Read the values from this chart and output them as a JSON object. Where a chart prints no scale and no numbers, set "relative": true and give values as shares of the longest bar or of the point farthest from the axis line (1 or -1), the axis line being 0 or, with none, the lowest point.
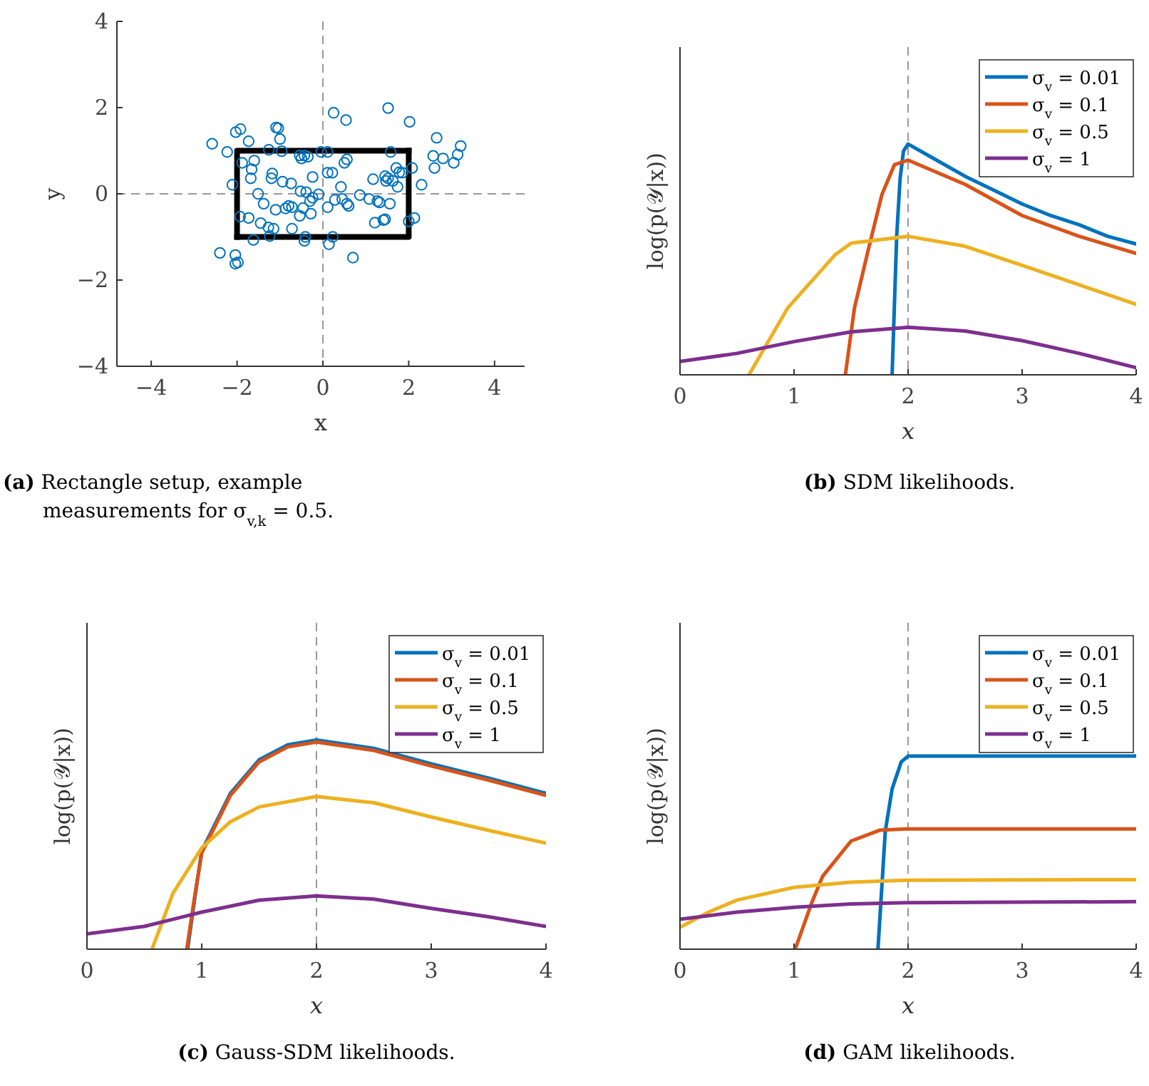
{
  "chart_data": [
    {
      "type": "scatter",
      "title": "(a) Rectangle setup, example measurements for σ$_{v,k}$ = 0.5.",
      "xlabel": "x",
      "ylabel": "y",
      "xlim": [
        -4.8,
        4.7
      ],
      "ylim": [
        -4,
        4
      ],
      "xticks": [
        -4,
        -2,
        0,
        2,
        4
      ],
      "yticks": [
        -4,
        -2,
        0,
        2,
        4
      ],
      "grid": false,
      "legend": false,
      "marker": "circle",
      "ref_lines": [
        {
          "axis": "x",
          "value": 0,
          "color": "#999999",
          "line_style": "dashed"
        },
        {
          "axis": "y",
          "value": 0,
          "color": "#999999",
          "line_style": "dashed"
        }
      ],
      "series": [
        {
          "type": "line",
          "color": "#000000",
          "marker": "none",
          "x": [
            -2,
            2,
            2
          ],
          "values": [
            -1,
            -1,
            1
          ]
        },
        {
          "type": "line",
          "color": "#000000",
          "marker": "none",
          "x": [
            2,
            -2,
            -2
          ],
          "values": [
            1,
            1,
            -1
          ]
        },
        {
          "type": "scatter",
          "color": "#0072bd",
          "x": [
            -2.58,
            -2.23,
            -2.03,
            -1.92,
            -1.73,
            -1.88,
            -1.6,
            -1.66,
            -1.68,
            -2.11,
            -1.26,
            -1.09,
            -1.04,
            -1.0,
            -0.96,
            -1.18,
            -1.2,
            -0.94,
            -0.74,
            -0.54,
            -0.43,
            -0.35,
            -0.5,
            -0.24,
            -0.04,
            0.11,
            0.25,
            0.54,
            0.56,
            0.5,
            0.11,
            0.22,
            0.42,
            1.52,
            2.02,
            1.58,
            1.71,
            1.78,
            1.45,
            1.52,
            1.47,
            1.63,
            1.17,
            2.08,
            1.85,
            1.74,
            2.3,
            2.65,
            2.57,
            2.8,
            2.6,
            3.21,
            3.14,
            3.05,
            -1.51,
            -1.38,
            -1.93,
            -1.73,
            -1.45,
            -1.27,
            -1.15,
            -1.24,
            -1.62,
            -1.1,
            -0.87,
            -0.8,
            -0.72,
            -0.72,
            -0.54,
            -0.52,
            -0.39,
            -0.46,
            -0.3,
            -0.24,
            -0.1,
            -0.28,
            -0.41,
            -0.43,
            0.11,
            0.28,
            0.45,
            0.56,
            0.6,
            0.23,
            0.14,
            0.7,
            0.86,
            1.08,
            1.27,
            1.32,
            1.56,
            1.21,
            1.41,
            1.45,
            2.0,
            2.13,
            -2.4,
            -2.04,
            -2.04,
            -1.98
          ],
          "values": [
            1.16,
            0.97,
            1.43,
            1.5,
            1.22,
            0.72,
            0.77,
            0.57,
            0.36,
            0.21,
            1.02,
            1.54,
            1.52,
            1.27,
            0.99,
            0.47,
            0.36,
            0.28,
            0.24,
            0.89,
            0.89,
            0.86,
            0.82,
            0.39,
            0.97,
            0.97,
            1.88,
            1.71,
            0.8,
            0.72,
            0.49,
            0.49,
            0.16,
            1.99,
            1.67,
            0.97,
            0.6,
            0.5,
            0.41,
            0.36,
            0.3,
            0.3,
            0.34,
            0.6,
            0.49,
            0.16,
            0.21,
            1.3,
            0.88,
            0.82,
            0.6,
            1.11,
            0.91,
            0.72,
            0.0,
            -0.23,
            -0.53,
            -0.56,
            -0.68,
            -0.78,
            -0.81,
            -0.98,
            -1.07,
            -0.37,
            -0.34,
            -0.28,
            -0.31,
            -0.81,
            -0.51,
            0.06,
            0.04,
            -0.33,
            -0.17,
            -0.09,
            -0.01,
            -0.46,
            -1.0,
            -1.09,
            -0.31,
            -0.14,
            -0.12,
            -0.23,
            -0.28,
            -1.0,
            -1.17,
            -1.48,
            -0.03,
            -0.12,
            -0.17,
            -0.2,
            -0.23,
            -0.67,
            -0.61,
            -0.59,
            -0.64,
            -0.56,
            -1.37,
            -1.42,
            -1.62,
            -1.59
          ]
        }
      ]
    },
    {
      "type": "line",
      "title": "(b) SDM likelihoods.",
      "xlabel": "x",
      "ylabel": "log(p(𝒴|x))",
      "relative": true,
      "xlim": [
        0,
        4
      ],
      "xticks": [
        0,
        1,
        2,
        3,
        4
      ],
      "grid": false,
      "legend": "top right",
      "marker": "none",
      "line_style": "solid",
      "ref_lines": [
        {
          "axis": "x",
          "value": 2,
          "color": "#999999",
          "line_style": "dashed"
        }
      ],
      "series": [
        {
          "name": "σ$_{v}$ = 0.01",
          "color": "#0072bd",
          "x": [
            1.86,
            1.88,
            1.9,
            1.93,
            1.96,
            2.0,
            2.25,
            2.5,
            2.75,
            3,
            3.25,
            3.5,
            3.75,
            4
          ],
          "values": [
            0,
            0.3,
            0.6,
            0.85,
            0.97,
            1,
            0.93,
            0.86,
            0.8,
            0.74,
            0.69,
            0.65,
            0.6,
            0.567
          ]
        },
        {
          "name": "σ$_{v}$ = 0.1",
          "color": "#d95319",
          "x": [
            1.45,
            1.53,
            1.65,
            1.77,
            1.88,
            2.0,
            2.5,
            3,
            3.5,
            4
          ],
          "values": [
            0,
            0.29,
            0.54,
            0.78,
            0.91,
            0.93,
            0.825,
            0.69,
            0.6,
            0.526
          ]
        },
        {
          "name": "σ$_{v}$ = 0.5",
          "color": "#edb120",
          "x": [
            0.605,
            0.945,
            1.36,
            1.5,
            2,
            2.5,
            3,
            3.5,
            4
          ],
          "values": [
            0,
            0.29,
            0.52,
            0.57,
            0.6,
            0.557,
            0.474,
            0.39,
            0.305
          ]
        },
        {
          "name": "σ$_{v}$ = 1",
          "color": "#7e2f8e",
          "x": [
            0,
            0.5,
            1,
            1.5,
            2,
            2.5,
            3,
            3.5,
            4
          ],
          "values": [
            0.058,
            0.093,
            0.144,
            0.186,
            0.206,
            0.19,
            0.148,
            0.093,
            0.031
          ]
        }
      ]
    },
    {
      "type": "line",
      "title": "(c) Gauss-SDM likelihoods.",
      "xlabel": "x",
      "ylabel": "log(p(𝒴|x))",
      "relative": true,
      "xlim": [
        0,
        4
      ],
      "xticks": [
        0,
        1,
        2,
        3,
        4
      ],
      "grid": false,
      "legend": "top right",
      "marker": "none",
      "line_style": "solid",
      "ref_lines": [
        {
          "axis": "x",
          "value": 2,
          "color": "#999999",
          "line_style": "dashed"
        }
      ],
      "series": [
        {
          "name": "σ$_{v}$ = 0.01",
          "color": "#0072bd",
          "x": [
            0.877,
            0.94,
            1,
            1.25,
            1.5,
            1.75,
            2,
            2.5,
            3,
            3.5,
            4
          ],
          "values": [
            0,
            0.245,
            0.47,
            0.745,
            0.905,
            0.977,
            1,
            0.96,
            0.886,
            0.818,
            0.745
          ]
        },
        {
          "name": "σ$_{v}$ = 0.1",
          "color": "#d95319",
          "x": [
            0.87,
            0.935,
            1,
            1.25,
            1.5,
            1.75,
            2,
            2.5,
            3,
            3.5,
            4
          ],
          "values": [
            0,
            0.24,
            0.46,
            0.735,
            0.895,
            0.967,
            0.99,
            0.95,
            0.876,
            0.808,
            0.735
          ]
        },
        {
          "name": "σ$_{v}$ = 0.5",
          "color": "#edb120",
          "x": [
            0.567,
            0.75,
            1,
            1.25,
            1.5,
            2,
            2.5,
            3,
            3.5,
            4
          ],
          "values": [
            0,
            0.268,
            0.484,
            0.609,
            0.68,
            0.73,
            0.7,
            0.632,
            0.568,
            0.507
          ]
        },
        {
          "name": "σ$_{v}$ = 1",
          "color": "#7e2f8e",
          "x": [
            0,
            0.5,
            1,
            1.5,
            2,
            2.5,
            3,
            3.5,
            4
          ],
          "values": [
            0.073,
            0.109,
            0.177,
            0.234,
            0.255,
            0.239,
            0.195,
            0.155,
            0.109
          ]
        }
      ]
    },
    {
      "type": "line",
      "title": "(d) GAM likelihoods.",
      "xlabel": "x",
      "ylabel": "log(p(𝒴|x))",
      "relative": true,
      "xlim": [
        0,
        4
      ],
      "xticks": [
        0,
        1,
        2,
        3,
        4
      ],
      "grid": false,
      "legend": "top right",
      "marker": "none",
      "line_style": "solid",
      "ref_lines": [
        {
          "axis": "x",
          "value": 2,
          "color": "#999999",
          "line_style": "dashed"
        }
      ],
      "series": [
        {
          "name": "σ$_{v}$ = 0.01",
          "color": "#0072bd",
          "x": [
            1.736,
            1.8,
            1.86,
            1.94,
            2,
            4
          ],
          "values": [
            0,
            0.61,
            0.83,
            0.97,
            1,
            1
          ]
        },
        {
          "name": "σ$_{v}$ = 0.1",
          "color": "#d95319",
          "x": [
            1.01,
            1.155,
            1.25,
            1.5,
            1.75,
            2,
            4
          ],
          "values": [
            0,
            0.24,
            0.377,
            0.56,
            0.616,
            0.623,
            0.623
          ]
        },
        {
          "name": "σ$_{v}$ = 0.5",
          "color": "#edb120",
          "x": [
            0,
            0.25,
            0.5,
            1,
            1.5,
            2,
            4
          ],
          "values": [
            0.113,
            0.192,
            0.254,
            0.32,
            0.347,
            0.357,
            0.36
          ]
        },
        {
          "name": "σ$_{v}$ = 1",
          "color": "#7e2f8e",
          "x": [
            0,
            0.5,
            1,
            1.5,
            2,
            4
          ],
          "values": [
            0.155,
            0.192,
            0.217,
            0.234,
            0.241,
            0.246
          ]
        }
      ]
    }
  ]
}
